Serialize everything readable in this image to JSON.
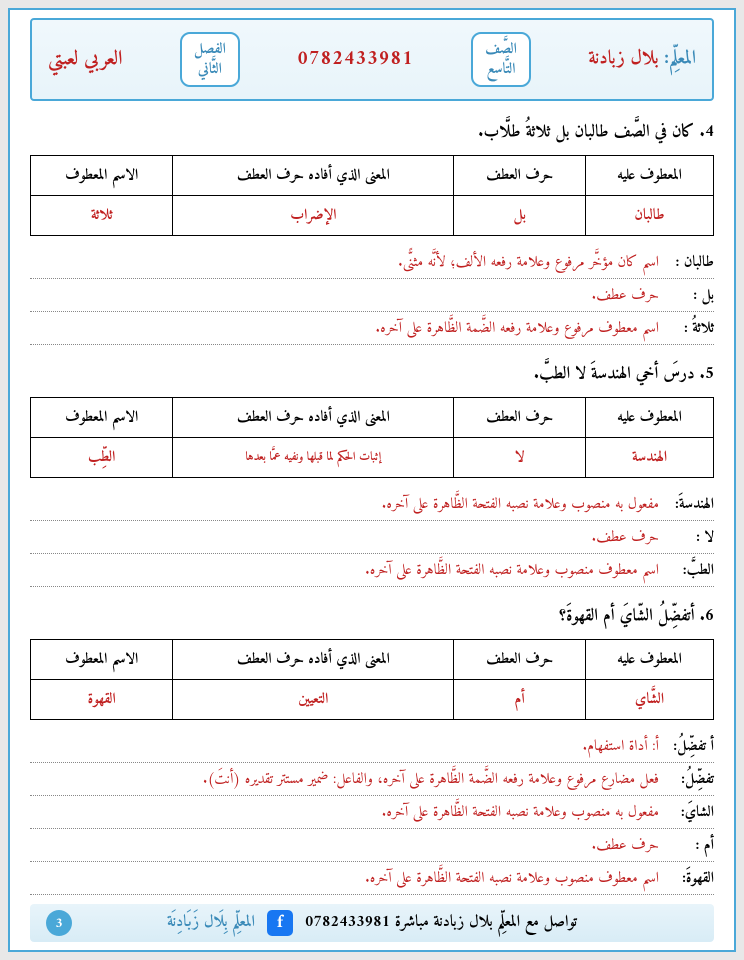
{
  "header": {
    "teacher_label": "المعلِّم:",
    "teacher_name": "بلال زبادنة",
    "grade": "الصَّف\nالتَّاسع",
    "phone": "0782433981",
    "term": "الفصل\nالثَّاني",
    "subject": "العربي لعبتي"
  },
  "q4": {
    "title": "4. كان في الصَّف طالبان بل ثلاثةُ طلَّاب.",
    "cols": [
      "المعطوف عليه",
      "حرف العطف",
      "المعنى الذي أفاده حرف العطف",
      "الاسم المعطوف"
    ],
    "row": [
      "طالبان",
      "بل",
      "الإضراب",
      "ثلاثة"
    ],
    "lines": [
      {
        "term": "طالبان :",
        "def": "اسم كان مؤخَّر مرفوع وعلامة رفعه الألف؛ لأنَّه مثنًّى."
      },
      {
        "term": "بل :",
        "def": "حرف عطف."
      },
      {
        "term": "ثلاثةُ :",
        "def": "اسم معطوف مرفوع وعلامة رفعه الضَّمة الظَّاهرة على آخره."
      }
    ]
  },
  "q5": {
    "title": "5. درسَ أخي الهندسةَ لا الطبَّ.",
    "cols": [
      "المعطوف عليه",
      "حرف العطف",
      "المعنى الذي أفاده حرف العطف",
      "الاسم المعطوف"
    ],
    "row": [
      "الهندسة",
      "لا",
      "إثبات الحكم لما قبلها ونفيه عمَّا بعدها",
      "الطِّب"
    ],
    "lines": [
      {
        "term": "الهندسةَ:",
        "def": "مفعول به منصوب وعلامة نصبه الفتحة الظَّاهرة على آخره."
      },
      {
        "term": "لا :",
        "def": "حرف عطف."
      },
      {
        "term": "الطبَّ:",
        "def": "اسم معطوف منصوب وعلامة نصبه الفتحة الظَّاهرة على آخره."
      }
    ]
  },
  "q6": {
    "title": "6. أتفضِّلُ الشّايَ أم القهوةَ؟",
    "cols": [
      "المعطوف عليه",
      "حرف العطف",
      "المعنى الذي أفاده حرف العطف",
      "الاسم المعطوف"
    ],
    "row": [
      "الشَّاي",
      "أم",
      "التعيين",
      "القهوة"
    ],
    "lines": [
      {
        "term": "أ تفضِّلُ:",
        "def": "أ: أداة استفهام."
      },
      {
        "term": "تفضِّلُ:",
        "def": "فعل مضارع مرفوع وعلامة رفعه الضَّمة الظَّاهرة على آخره، والفاعل: ضمير مستتر تقديره (أنتَ)."
      },
      {
        "term": "الشايَ:",
        "def": "مفعول به منصوب وعلامة نصبه الفتحة الظَّاهرة على آخره."
      },
      {
        "term": "أم :",
        "def": "حرف عطف."
      },
      {
        "term": "القهوةَ:",
        "def": "اسم معطوف منصوب وعلامة نصبه الفتحة الظَّاهرة على آخره."
      }
    ]
  },
  "footer": {
    "contact": "تواصل مع المعلِّم بلال زبادنة مباشرة",
    "phone": "0782433981",
    "team": "المعلِّم بِلَال زَبَادِنَة",
    "page": "3"
  }
}
